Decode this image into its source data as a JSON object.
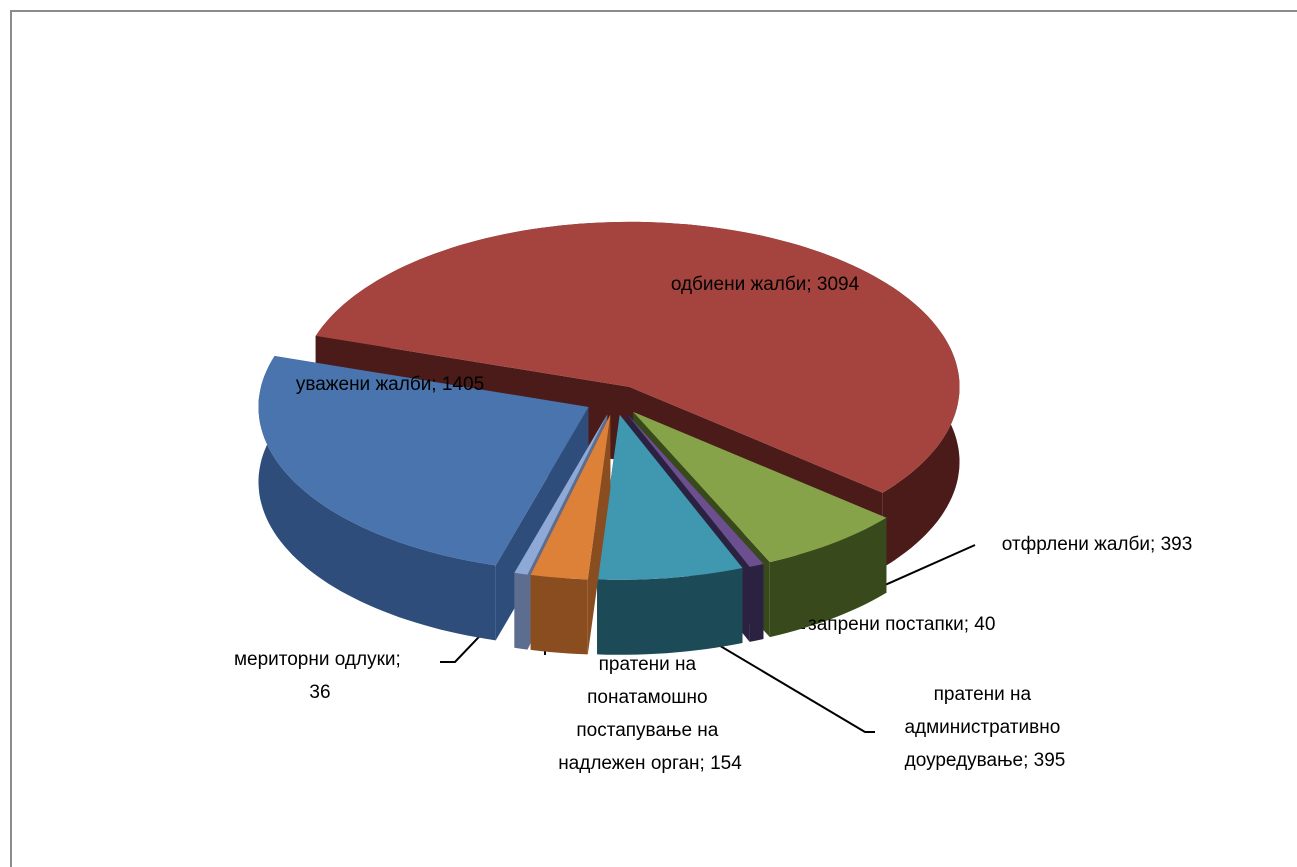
{
  "chart_data": {
    "type": "pie3d",
    "values": [
      3094,
      393,
      40,
      395,
      154,
      36,
      1405
    ],
    "value_labels": [
      "одбиени жалби; 3094",
      "отфрлени жалби; 393",
      "запрени постапки; 40",
      "пратени на административно доуредување; 395",
      "пратени на понатамошно постапување на надлежен орган; 154",
      "мериторни одлуки; 36",
      "уважени жалби; 1405"
    ],
    "colors": [
      "#a5443f",
      "#86a34a",
      "#6b4f8e",
      "#3f98b0",
      "#dd8139",
      "#8fa9d6",
      "#4a74ae"
    ],
    "side_colors": [
      "#4a1b19",
      "#384a1c",
      "#2b2140",
      "#1d4a57",
      "#8a4d1f",
      "#5d6d8f",
      "#2e4d7a"
    ]
  }
}
